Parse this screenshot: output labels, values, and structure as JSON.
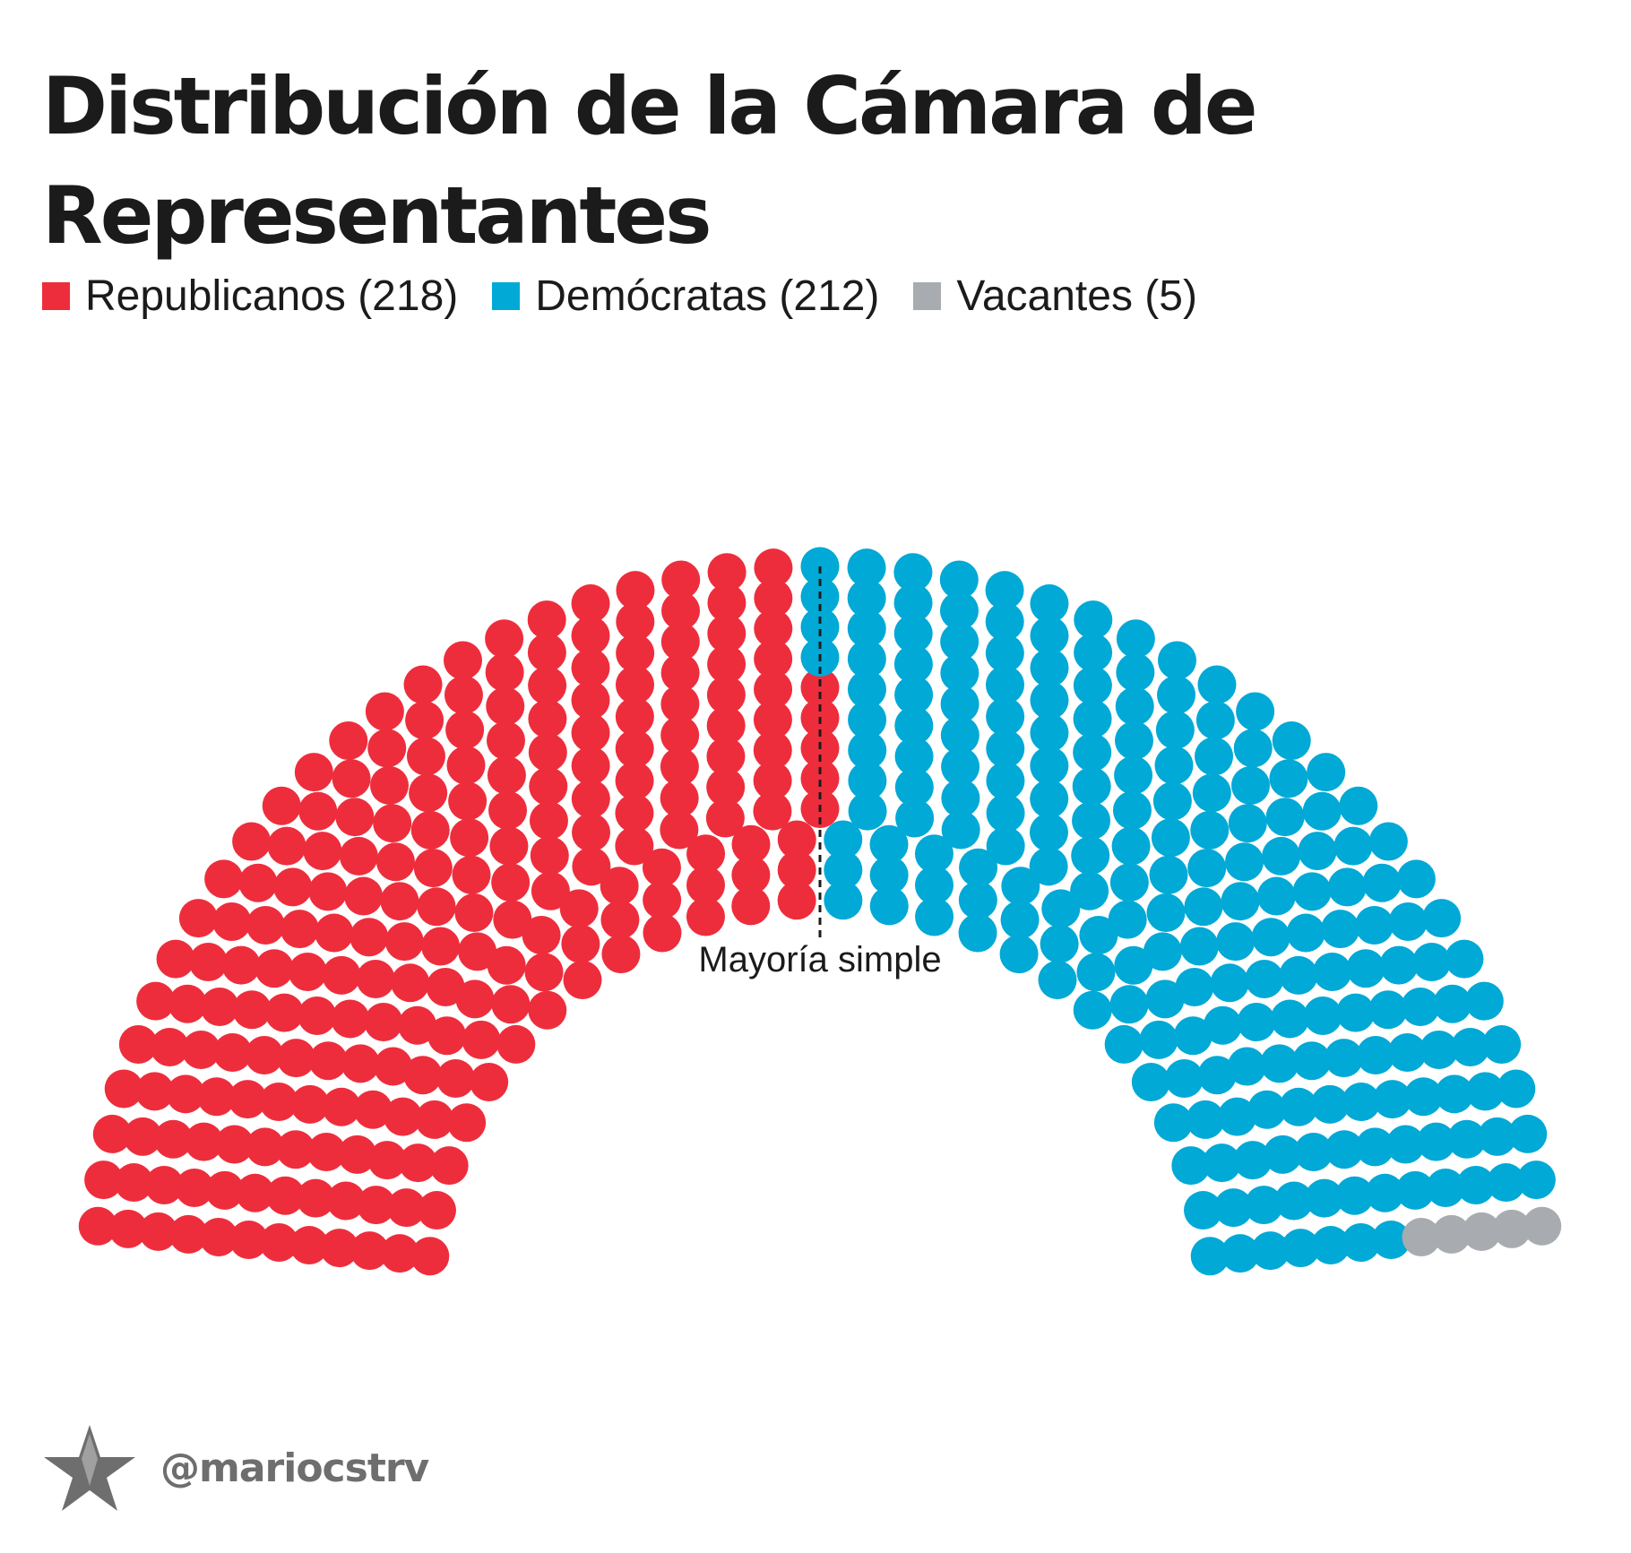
{
  "chart_data": {
    "type": "parliament",
    "title": "Distribución de la Cámara de Representantes",
    "total_seats": 435,
    "rows": 12,
    "series": [
      {
        "name": "Republicanos",
        "label": "Republicanos (218)",
        "value": 218,
        "color": "#ee2d3c"
      },
      {
        "name": "Demócratas",
        "label": "Demócratas (212)",
        "value": 212,
        "color": "#00a9d6"
      },
      {
        "name": "Vacantes",
        "label": "Vacantes (5)",
        "value": 5,
        "color": "#a8abaf"
      }
    ],
    "majority_seats": 218,
    "annotation": "Mayoría simple"
  },
  "footer": {
    "handle": "@mariocstrv",
    "logo_icon": "star-icon"
  }
}
